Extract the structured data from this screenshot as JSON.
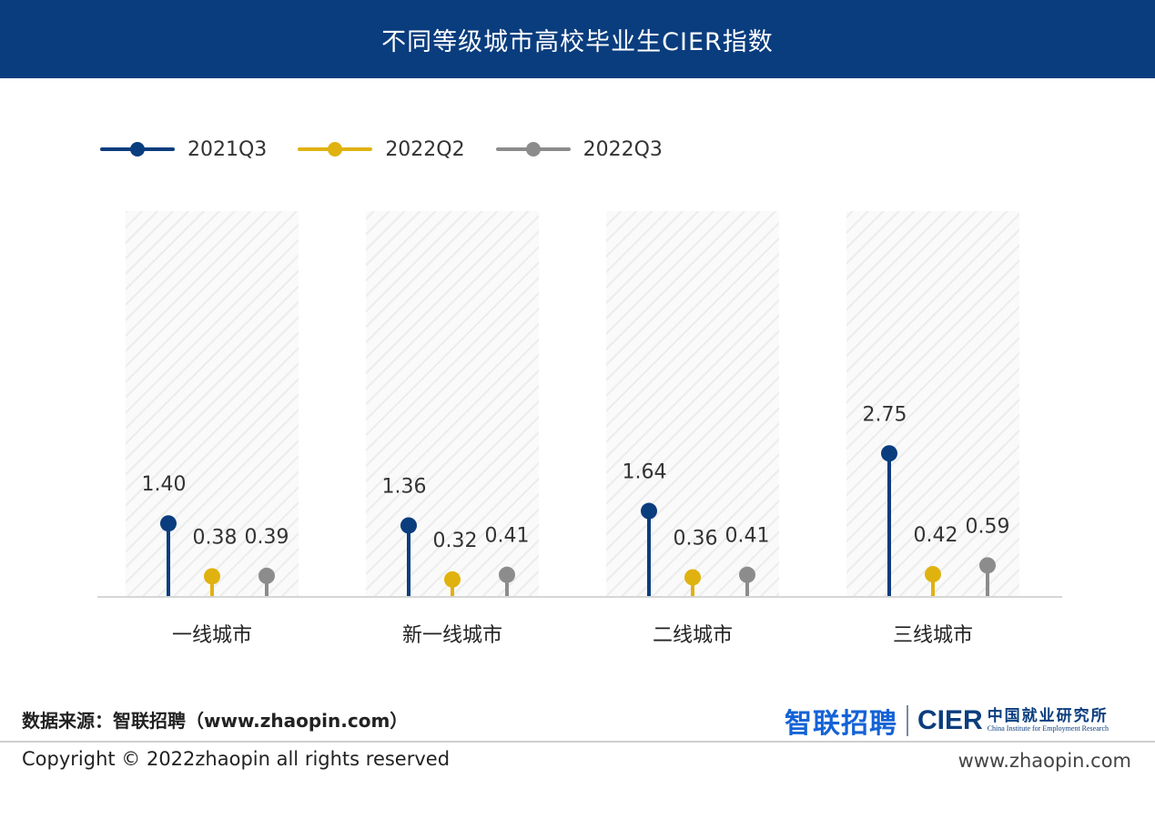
{
  "header": {
    "title": "不同等级城市高校毕业生CIER指数"
  },
  "legend": [
    {
      "label": "2021Q3",
      "color": "#0a3d7e"
    },
    {
      "label": "2022Q2",
      "color": "#e0b20f"
    },
    {
      "label": "2022Q3",
      "color": "#8c8c8c"
    }
  ],
  "chart_data": {
    "type": "lollipop",
    "title": "不同等级城市高校毕业生CIER指数",
    "categories": [
      "一线城市",
      "新一线城市",
      "二线城市",
      "三线城市"
    ],
    "series": [
      {
        "name": "2021Q3",
        "values": [
          1.4,
          1.36,
          1.64,
          2.75
        ],
        "labels": [
          "1.40",
          "1.36",
          "1.64",
          "2.75"
        ],
        "color": "#0a3d7e"
      },
      {
        "name": "2022Q2",
        "values": [
          0.38,
          0.32,
          0.36,
          0.42
        ],
        "labels": [
          "0.38",
          "0.32",
          "0.36",
          "0.42"
        ],
        "color": "#e0b20f"
      },
      {
        "name": "2022Q3",
        "values": [
          0.39,
          0.41,
          0.41,
          0.59
        ],
        "labels": [
          "0.39",
          "0.41",
          "0.41",
          "0.59"
        ],
        "color": "#8c8c8c"
      }
    ],
    "ylim": [
      0,
      3
    ],
    "grid": false,
    "legend_position": "top-left"
  },
  "footer": {
    "source": "数据来源：智联招聘（www.zhaopin.com）",
    "logo_zhilian": "智联招聘",
    "logo_cier": "CIER",
    "logo_cier_cn": "中国就业研究所",
    "logo_cier_en": "China Institute for Employment Research",
    "copyright": "Copyright ©  2022zhaopin all rights reserved",
    "site": "www.zhaopin.com"
  }
}
